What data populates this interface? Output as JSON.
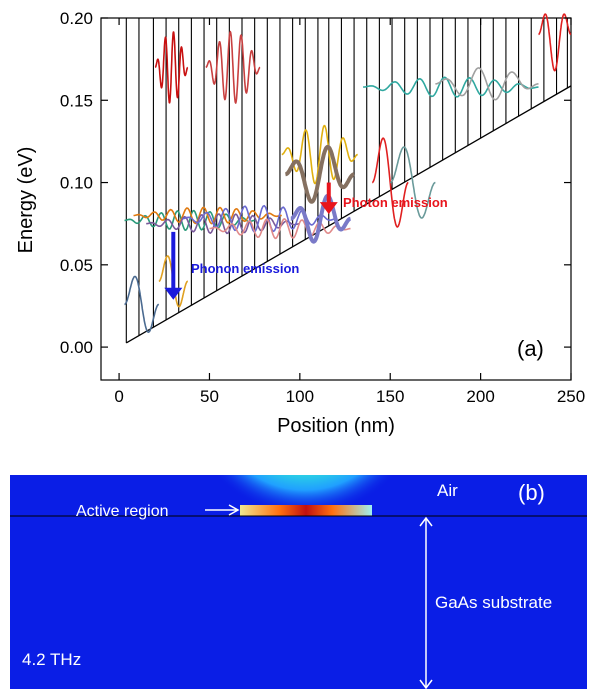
{
  "panel_a": {
    "label": "(a)",
    "xlabel": "Position (nm)",
    "ylabel": "Energy (eV)",
    "x_ticks": [
      "0",
      "50",
      "100",
      "150",
      "200",
      "250"
    ],
    "y_ticks": [
      "0.00",
      "0.05",
      "0.10",
      "0.15",
      "0.20"
    ],
    "phonon_label": "Phonon emission",
    "photon_label": "Photon emission",
    "colors": {
      "phonon": "#1a1adc",
      "photon": "#e8141c",
      "band": "#000000"
    }
  },
  "panel_b": {
    "label": "(b)",
    "air_label": "Air",
    "active_label": "Active region",
    "substrate_label": "GaAs substrate",
    "freq_label": "4.2 THz",
    "colors": {
      "background": "#0a1ee6",
      "hot": "#b41010"
    }
  },
  "chart_data": {
    "type": "line",
    "xlabel": "Position (nm)",
    "ylabel": "Energy (eV)",
    "xlim": [
      -10,
      250
    ],
    "ylim": [
      -0.02,
      0.2
    ],
    "x_ticks": [
      0,
      50,
      100,
      150,
      200,
      250
    ],
    "y_ticks": [
      0.0,
      0.05,
      0.1,
      0.15,
      0.2
    ],
    "band_slope_eV_per_nm": 0.000635,
    "band_edges_nm": [
      4,
      11,
      19,
      26,
      33,
      40,
      47,
      54,
      61,
      68,
      75,
      82,
      89,
      96,
      103,
      110,
      116,
      123,
      130,
      137,
      144,
      151,
      158,
      165,
      172,
      179,
      186,
      193,
      200,
      207,
      214,
      221,
      228,
      235,
      242,
      248
    ],
    "wavefunctions": [
      {
        "x0": 3,
        "x1": 22,
        "energy": 0.026,
        "amp": 0.022,
        "cycles": 1.0,
        "color": "#4a6a90"
      },
      {
        "x0": 22,
        "x1": 38,
        "energy": 0.04,
        "amp": 0.02,
        "cycles": 1.0,
        "color": "#e0a020"
      },
      {
        "x0": 3,
        "x1": 75,
        "energy": 0.077,
        "amp": 0.006,
        "cycles": 8,
        "color": "#2a9a7a"
      },
      {
        "x0": 8,
        "x1": 90,
        "energy": 0.08,
        "amp": 0.005,
        "cycles": 9,
        "color": "#e07a10"
      },
      {
        "x0": 15,
        "x1": 100,
        "energy": 0.075,
        "amp": 0.006,
        "cycles": 9,
        "color": "#7a5a9a"
      },
      {
        "x0": 35,
        "x1": 120,
        "energy": 0.078,
        "amp": 0.008,
        "cycles": 8,
        "color": "#6a6ad0"
      },
      {
        "x0": 50,
        "x1": 128,
        "energy": 0.072,
        "amp": 0.006,
        "cycles": 8,
        "color": "#e08a8a"
      },
      {
        "x0": 95,
        "x1": 128,
        "energy": 0.078,
        "amp": 0.015,
        "cycles": 2,
        "color": "#7a7ac8"
      },
      {
        "x0": 90,
        "x1": 132,
        "energy": 0.117,
        "amp": 0.018,
        "cycles": 4,
        "color": "#e0b010"
      },
      {
        "x0": 92,
        "x1": 130,
        "energy": 0.105,
        "amp": 0.018,
        "cycles": 2,
        "color": "#857060"
      },
      {
        "x0": 140,
        "x1": 160,
        "energy": 0.1,
        "amp": 0.035,
        "cycles": 1,
        "color": "#e02020"
      },
      {
        "x0": 150,
        "x1": 175,
        "energy": 0.1,
        "amp": 0.028,
        "cycles": 1,
        "color": "#6a9a9a"
      },
      {
        "x0": 20,
        "x1": 38,
        "energy": 0.17,
        "amp": 0.022,
        "cycles": 4,
        "color": "#c81010"
      },
      {
        "x0": 48,
        "x1": 78,
        "energy": 0.17,
        "amp": 0.022,
        "cycles": 5,
        "color": "#c84040"
      },
      {
        "x0": 135,
        "x1": 232,
        "energy": 0.158,
        "amp": 0.006,
        "cycles": 7,
        "color": "#30a8a0"
      },
      {
        "x0": 175,
        "x1": 232,
        "energy": 0.16,
        "amp": 0.01,
        "cycles": 3,
        "color": "#a0a0a0"
      },
      {
        "x0": 232,
        "x1": 250,
        "energy": 0.19,
        "amp": 0.022,
        "cycles": 1.5,
        "color": "#e02020"
      }
    ],
    "arrows": [
      {
        "x": 30,
        "y_from": 0.07,
        "y_to": 0.03,
        "label": "Phonon emission"
      },
      {
        "x": 116,
        "y_from": 0.1,
        "y_to": 0.082,
        "label": "Photon emission"
      }
    ]
  }
}
